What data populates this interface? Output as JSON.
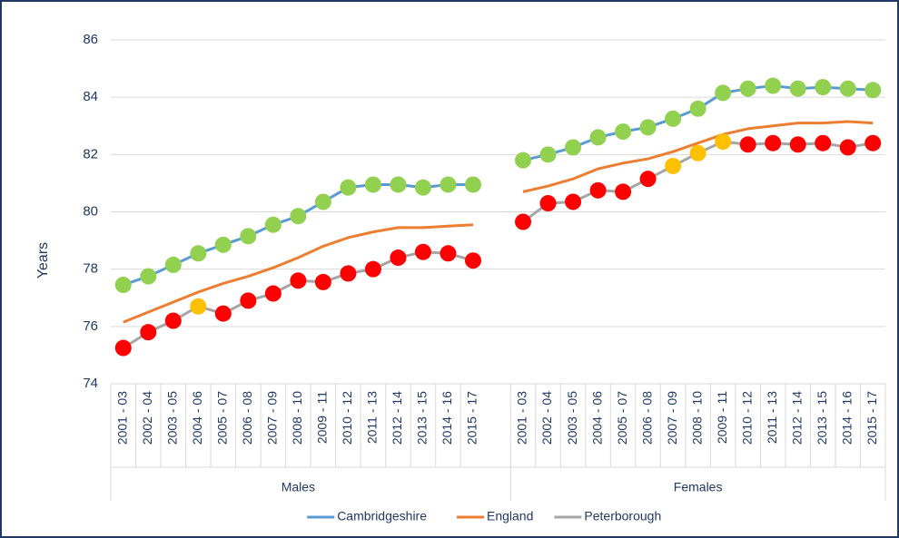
{
  "chart_data": {
    "type": "line",
    "y_label": "Years",
    "groups": [
      "Males",
      "Females"
    ],
    "categories": [
      "2001 - 03",
      "2002 - 04",
      "2003 - 05",
      "2004 - 06",
      "2005 - 07",
      "2006 - 08",
      "2007 - 09",
      "2008 - 10",
      "2009 - 11",
      "2010 - 12",
      "2011 - 13",
      "2012 - 14",
      "2013 - 15",
      "2014 - 16",
      "2015 - 17",
      null,
      "2001 - 03",
      "2002 - 04",
      "2003 - 05",
      "2004 - 06",
      "2005 - 07",
      "2006 - 08",
      "2007 - 09",
      "2008 - 10",
      "2009 - 11",
      "2010 - 12",
      "2011 - 13",
      "2012 - 14",
      "2013 - 15",
      "2014 - 16",
      "2015 - 17"
    ],
    "series": [
      {
        "name": "Cambridgeshire",
        "color": "#5b9bd5",
        "values": [
          77.45,
          77.75,
          78.15,
          78.55,
          78.85,
          79.15,
          79.55,
          79.85,
          80.35,
          80.85,
          80.95,
          80.95,
          80.85,
          80.95,
          80.95,
          null,
          81.8,
          82.0,
          82.25,
          82.6,
          82.8,
          82.95,
          83.25,
          83.6,
          84.15,
          84.3,
          84.4,
          84.3,
          84.35,
          84.3,
          84.25
        ],
        "marker_colors": [
          "#92d050",
          "#92d050",
          "#92d050",
          "#92d050",
          "#92d050",
          "#92d050",
          "#92d050",
          "#92d050",
          "#92d050",
          "#92d050",
          "#92d050",
          "#92d050",
          "#92d050",
          "#92d050",
          "#92d050",
          null,
          "#92d050",
          "#92d050",
          "#92d050",
          "#92d050",
          "#92d050",
          "#92d050",
          "#92d050",
          "#92d050",
          "#92d050",
          "#92d050",
          "#92d050",
          "#92d050",
          "#92d050",
          "#92d050",
          "#92d050"
        ]
      },
      {
        "name": "England",
        "color": "#ed7d31",
        "values": [
          76.15,
          76.5,
          76.85,
          77.2,
          77.5,
          77.75,
          78.05,
          78.4,
          78.8,
          79.1,
          79.3,
          79.45,
          79.45,
          79.5,
          79.55,
          null,
          80.7,
          80.9,
          81.15,
          81.5,
          81.7,
          81.85,
          82.1,
          82.4,
          82.7,
          82.9,
          83.0,
          83.1,
          83.1,
          83.15,
          83.1
        ]
      },
      {
        "name": "Peterborough",
        "color": "#a5a5a5",
        "values": [
          75.25,
          75.8,
          76.2,
          76.7,
          76.45,
          76.9,
          77.15,
          77.6,
          77.55,
          77.85,
          78.0,
          78.4,
          78.6,
          78.55,
          78.3,
          null,
          79.65,
          80.3,
          80.35,
          80.75,
          80.7,
          81.15,
          81.6,
          82.05,
          82.45,
          82.35,
          82.4,
          82.35,
          82.4,
          82.25,
          82.4
        ],
        "marker_colors": [
          "#ff0000",
          "#ff0000",
          "#ff0000",
          "#ffc000",
          "#ff0000",
          "#ff0000",
          "#ff0000",
          "#ff0000",
          "#ff0000",
          "#ff0000",
          "#ff0000",
          "#ff0000",
          "#ff0000",
          "#ff0000",
          "#ff0000",
          null,
          "#ff0000",
          "#ff0000",
          "#ff0000",
          "#ff0000",
          "#ff0000",
          "#ff0000",
          "#ffc000",
          "#ffc000",
          "#ffc000",
          "#ff0000",
          "#ff0000",
          "#ff0000",
          "#ff0000",
          "#ff0000",
          "#ff0000"
        ]
      }
    ],
    "ylim": [
      74,
      86
    ],
    "yticks": [
      74,
      76,
      78,
      80,
      82,
      84,
      86
    ],
    "grid": true,
    "legend": "bottom"
  }
}
